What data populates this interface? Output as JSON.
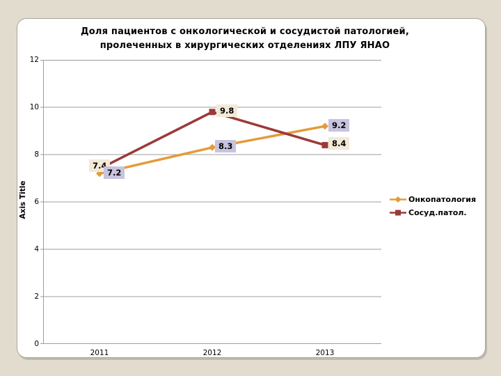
{
  "slide": {
    "background_color": "#E2DCCF",
    "panel_color": "#FFFFFF",
    "panel_border_color": "#A9A49A"
  },
  "chart_data": {
    "type": "line",
    "title": "Доля пациентов с онкологической и сосудистой патологией, пролеченных в хирургических отделениях ЛПУ ЯНАО",
    "title_lines": [
      "Доля пациентов с онкологической и сосудистой патологией,",
      "пролеченных в хирургических отделениях ЛПУ ЯНАО"
    ],
    "ylabel": "Axis Title",
    "xlabel": "",
    "categories": [
      "2011",
      "2012",
      "2013"
    ],
    "series": [
      {
        "name": "Онкопатология",
        "values": [
          7.2,
          8.3,
          9.2
        ],
        "color": "#E49B3A",
        "marker": "diamond",
        "label_bg": "#C8C3DF",
        "label_offsets": [
          [
            6,
            -10
          ],
          [
            4,
            -11
          ],
          [
            5,
            -10
          ]
        ]
      },
      {
        "name": "Сосуд.патол.",
        "values": [
          7.4,
          9.8,
          8.4
        ],
        "color": "#9A3A39",
        "marker": "square",
        "label_bg": "#F2E9D7",
        "label_offsets": [
          [
            -15,
            -13
          ],
          [
            6,
            -11
          ],
          [
            5,
            -11
          ]
        ]
      }
    ],
    "ylim": [
      0,
      12
    ],
    "yticks": [
      0,
      2,
      4,
      6,
      8,
      10,
      12
    ],
    "grid": true,
    "gridline_color": "#9C9C9C",
    "legend_position": "right"
  }
}
